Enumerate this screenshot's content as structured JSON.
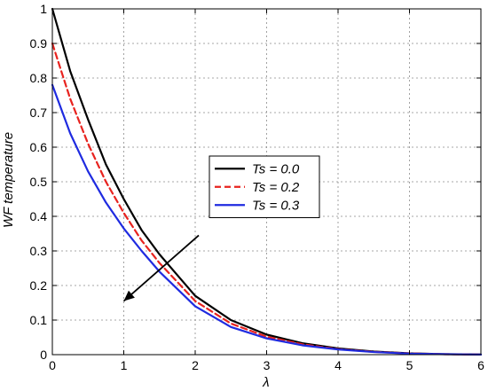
{
  "chart_data": {
    "type": "line",
    "title": "",
    "xlabel": "λ",
    "ylabel": "WF temperature",
    "xlim": [
      0,
      6
    ],
    "ylim": [
      0,
      1
    ],
    "xticks": [
      0,
      1,
      2,
      3,
      4,
      5,
      6
    ],
    "yticks": [
      0,
      0.1,
      0.2,
      0.3,
      0.4,
      0.5,
      0.6,
      0.7,
      0.8,
      0.9,
      1
    ],
    "xtick_labels": [
      "0",
      "1",
      "2",
      "3",
      "4",
      "5",
      "6"
    ],
    "ytick_labels": [
      "0",
      "0.1",
      "0.2",
      "0.3",
      "0.4",
      "0.5",
      "0.6",
      "0.7",
      "0.8",
      "0.9",
      "1"
    ],
    "grid": true,
    "grid_style": "dashed",
    "legend_position": "center-right",
    "series": [
      {
        "name": "Ts = 0.0",
        "color": "#000000",
        "line_style": "solid",
        "x": [
          0,
          0.25,
          0.5,
          0.75,
          1,
          1.25,
          1.5,
          1.75,
          2,
          2.5,
          3,
          3.5,
          4,
          4.5,
          5,
          5.5,
          6
        ],
        "y": [
          1.0,
          0.82,
          0.68,
          0.55,
          0.45,
          0.36,
          0.29,
          0.23,
          0.17,
          0.1,
          0.058,
          0.033,
          0.018,
          0.009,
          0.004,
          0.0015,
          0.0005
        ]
      },
      {
        "name": "Ts = 0.2",
        "color": "#e8231f",
        "line_style": "dashed",
        "x": [
          0,
          0.25,
          0.5,
          0.75,
          1,
          1.25,
          1.5,
          1.75,
          2,
          2.5,
          3,
          3.5,
          4,
          4.5,
          5,
          5.5,
          6
        ],
        "y": [
          0.9,
          0.74,
          0.61,
          0.5,
          0.41,
          0.33,
          0.265,
          0.21,
          0.155,
          0.09,
          0.052,
          0.03,
          0.016,
          0.008,
          0.0035,
          0.0013,
          0.0004
        ]
      },
      {
        "name": "Ts = 0.3",
        "color": "#1f2be0",
        "line_style": "solid",
        "x": [
          0,
          0.25,
          0.5,
          0.75,
          1,
          1.25,
          1.5,
          1.75,
          2,
          2.5,
          3,
          3.5,
          4,
          4.5,
          5,
          5.5,
          6
        ],
        "y": [
          0.78,
          0.64,
          0.53,
          0.44,
          0.365,
          0.3,
          0.24,
          0.19,
          0.14,
          0.08,
          0.047,
          0.027,
          0.015,
          0.0075,
          0.003,
          0.0012,
          0.0004
        ]
      }
    ],
    "annotations": [
      {
        "type": "arrow",
        "direction": "increasing Ts",
        "from": [
          2.05,
          0.345
        ],
        "to": [
          1.0,
          0.155
        ]
      }
    ]
  }
}
